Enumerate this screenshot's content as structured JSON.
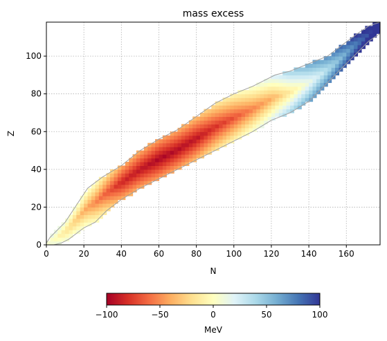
{
  "chart_data": {
    "type": "heatmap",
    "title": "mass excess",
    "xlabel": "N",
    "ylabel": "Z",
    "xlim": [
      0,
      178
    ],
    "ylim": [
      0,
      118
    ],
    "xticks": [
      0,
      20,
      40,
      60,
      80,
      100,
      120,
      140,
      160
    ],
    "yticks": [
      0,
      20,
      40,
      60,
      80,
      100
    ],
    "grid": true,
    "colormap": "RdYlBu",
    "colorbar": {
      "label": "MeV",
      "range": [
        -100,
        100
      ],
      "ticks": [
        -100,
        -50,
        0,
        50,
        100
      ],
      "tick_labels": [
        "−100",
        "−50",
        "0",
        "50",
        "100"
      ],
      "orientation": "horizontal",
      "placement": "bottom"
    },
    "nuclide_band": {
      "upper_edge_N_vs_Z": [
        [
          0,
          1
        ],
        [
          2,
          4
        ],
        [
          6,
          8
        ],
        [
          10,
          12
        ],
        [
          14,
          18
        ],
        [
          18,
          24
        ],
        [
          22,
          30
        ],
        [
          30,
          36
        ],
        [
          40,
          42
        ],
        [
          50,
          50
        ],
        [
          60,
          56
        ],
        [
          70,
          61
        ],
        [
          80,
          68
        ],
        [
          90,
          75
        ],
        [
          100,
          80
        ],
        [
          110,
          84
        ],
        [
          122,
          90
        ],
        [
          130,
          92
        ],
        [
          140,
          96
        ],
        [
          150,
          100
        ],
        [
          158,
          106
        ],
        [
          166,
          112
        ],
        [
          172,
          116
        ],
        [
          178,
          118
        ]
      ],
      "lower_edge_N_vs_Z": [
        [
          0,
          0
        ],
        [
          4,
          0
        ],
        [
          8,
          1
        ],
        [
          12,
          3
        ],
        [
          16,
          6
        ],
        [
          20,
          9
        ],
        [
          26,
          12
        ],
        [
          32,
          18
        ],
        [
          40,
          24
        ],
        [
          50,
          30
        ],
        [
          60,
          35
        ],
        [
          70,
          40
        ],
        [
          80,
          45
        ],
        [
          90,
          50
        ],
        [
          100,
          55
        ],
        [
          110,
          60
        ],
        [
          120,
          66
        ],
        [
          130,
          70
        ],
        [
          140,
          76
        ],
        [
          148,
          84
        ],
        [
          156,
          92
        ],
        [
          164,
          100
        ],
        [
          172,
          108
        ],
        [
          178,
          112
        ]
      ],
      "mass_excess_at_stability_line_MeV": [
        [
          0,
          7
        ],
        [
          20,
          -40
        ],
        [
          40,
          -85
        ],
        [
          60,
          -98
        ],
        [
          80,
          -92
        ],
        [
          100,
          -70
        ],
        [
          120,
          -40
        ],
        [
          140,
          10
        ],
        [
          160,
          60
        ],
        [
          175,
          100
        ]
      ],
      "mass_excess_gradient_off_stability_MeV_per_unit_Z": 5.2
    }
  }
}
